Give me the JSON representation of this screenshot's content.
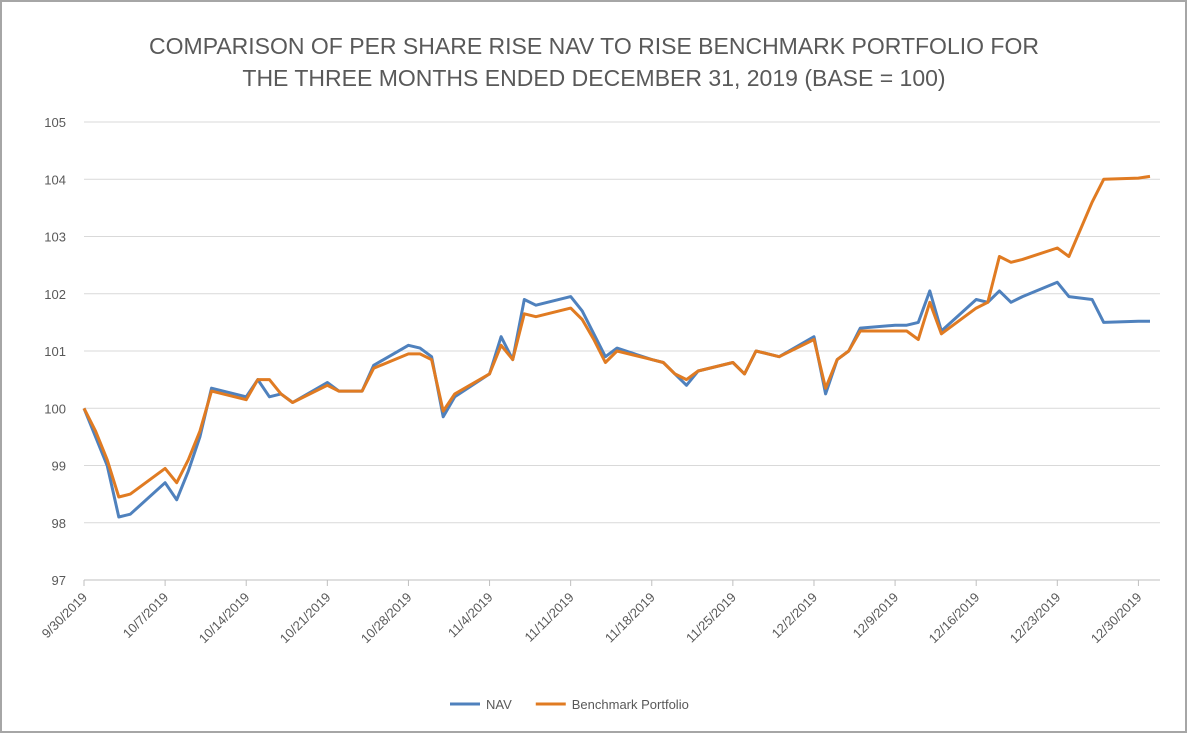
{
  "chart_data": {
    "type": "line",
    "title": [
      "COMPARISON OF PER SHARE RISE NAV TO RISE BENCHMARK PORTFOLIO FOR",
      "THE THREE MONTHS ENDED DECEMBER 31, 2019 (BASE = 100)"
    ],
    "x": [
      "9/30/2019",
      "10/1/2019",
      "10/2/2019",
      "10/3/2019",
      "10/4/2019",
      "10/7/2019",
      "10/8/2019",
      "10/9/2019",
      "10/10/2019",
      "10/11/2019",
      "10/14/2019",
      "10/15/2019",
      "10/16/2019",
      "10/17/2019",
      "10/18/2019",
      "10/21/2019",
      "10/22/2019",
      "10/23/2019",
      "10/24/2019",
      "10/25/2019",
      "10/28/2019",
      "10/29/2019",
      "10/30/2019",
      "10/31/2019",
      "11/1/2019",
      "11/4/2019",
      "11/5/2019",
      "11/6/2019",
      "11/7/2019",
      "11/8/2019",
      "11/11/2019",
      "11/12/2019",
      "11/13/2019",
      "11/14/2019",
      "11/15/2019",
      "11/18/2019",
      "11/19/2019",
      "11/20/2019",
      "11/21/2019",
      "11/22/2019",
      "11/25/2019",
      "11/26/2019",
      "11/27/2019",
      "11/29/2019",
      "12/2/2019",
      "12/3/2019",
      "12/4/2019",
      "12/5/2019",
      "12/6/2019",
      "12/9/2019",
      "12/10/2019",
      "12/11/2019",
      "12/12/2019",
      "12/13/2019",
      "12/16/2019",
      "12/17/2019",
      "12/18/2019",
      "12/19/2019",
      "12/20/2019",
      "12/23/2019",
      "12/24/2019",
      "12/26/2019",
      "12/27/2019",
      "12/30/2019",
      "12/31/2019"
    ],
    "series": [
      {
        "name": "NAV",
        "color": "#4f81bd",
        "values": [
          100,
          99.5,
          99.0,
          98.1,
          98.15,
          98.7,
          98.4,
          98.9,
          99.5,
          100.35,
          100.2,
          100.5,
          100.2,
          100.25,
          100.1,
          100.45,
          100.3,
          100.3,
          100.3,
          100.75,
          101.1,
          101.05,
          100.9,
          99.85,
          100.2,
          100.6,
          101.25,
          100.85,
          101.9,
          101.8,
          101.95,
          101.7,
          101.3,
          100.9,
          101.05,
          100.85,
          100.8,
          100.6,
          100.4,
          100.65,
          100.8,
          100.6,
          101.0,
          100.9,
          101.25,
          100.25,
          100.85,
          101.0,
          101.4,
          101.45,
          101.45,
          101.5,
          102.05,
          101.35,
          101.9,
          101.85,
          102.05,
          101.85,
          101.95,
          102.2,
          101.95,
          101.9,
          101.5,
          101.52,
          101.52
        ]
      },
      {
        "name": "Benchmark Portfolio",
        "color": "#e07b22",
        "values": [
          100,
          99.6,
          99.1,
          98.45,
          98.5,
          98.95,
          98.7,
          99.1,
          99.6,
          100.3,
          100.15,
          100.5,
          100.5,
          100.25,
          100.1,
          100.4,
          100.3,
          100.3,
          100.3,
          100.7,
          100.95,
          100.95,
          100.85,
          99.95,
          100.25,
          100.6,
          101.1,
          100.85,
          101.65,
          101.6,
          101.75,
          101.55,
          101.2,
          100.8,
          101.0,
          100.85,
          100.8,
          100.6,
          100.5,
          100.65,
          100.8,
          100.6,
          101.0,
          100.9,
          101.2,
          100.35,
          100.85,
          101.0,
          101.35,
          101.35,
          101.35,
          101.2,
          101.85,
          101.3,
          101.75,
          101.85,
          102.65,
          102.55,
          102.6,
          102.8,
          102.65,
          103.6,
          104.0,
          104.02,
          104.05
        ]
      }
    ],
    "xlim": [
      "9/30/2019",
      "12/31/2019"
    ],
    "xticks": [
      "9/30/2019",
      "10/7/2019",
      "10/14/2019",
      "10/21/2019",
      "10/28/2019",
      "11/4/2019",
      "11/11/2019",
      "11/18/2019",
      "11/25/2019",
      "12/2/2019",
      "12/9/2019",
      "12/16/2019",
      "12/23/2019",
      "12/30/2019"
    ],
    "ylim": [
      97,
      105
    ],
    "yticks": [
      97,
      98,
      99,
      100,
      101,
      102,
      103,
      104,
      105
    ],
    "grid": true,
    "legend": "bottom"
  }
}
